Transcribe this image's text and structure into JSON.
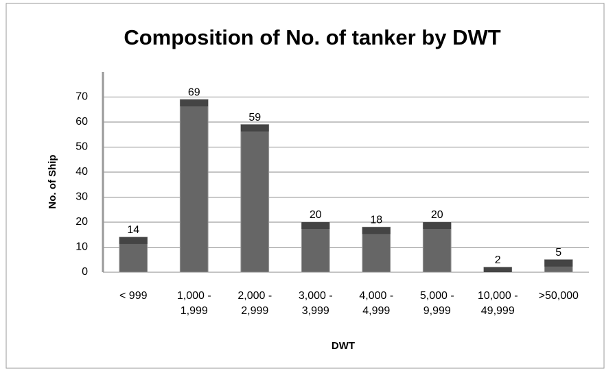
{
  "chart_data": {
    "type": "bar",
    "title": "Composition of No. of tanker by DWT",
    "x_label": "DWT",
    "y_label": "No. of Ship",
    "categories": [
      "< 999",
      "1,000 - 1,999",
      "2,000 - 2,999",
      "3,000 - 3,999",
      "4,000 - 4,999",
      "5,000 - 9,999",
      "10,000 - 49,999",
      ">50,000"
    ],
    "values": [
      14,
      69,
      59,
      20,
      18,
      20,
      2,
      5
    ],
    "color": "#666666",
    "ylim": [
      0,
      80
    ],
    "yticks": [
      0,
      10,
      20,
      30,
      40,
      50,
      60,
      70
    ],
    "grid": true
  }
}
